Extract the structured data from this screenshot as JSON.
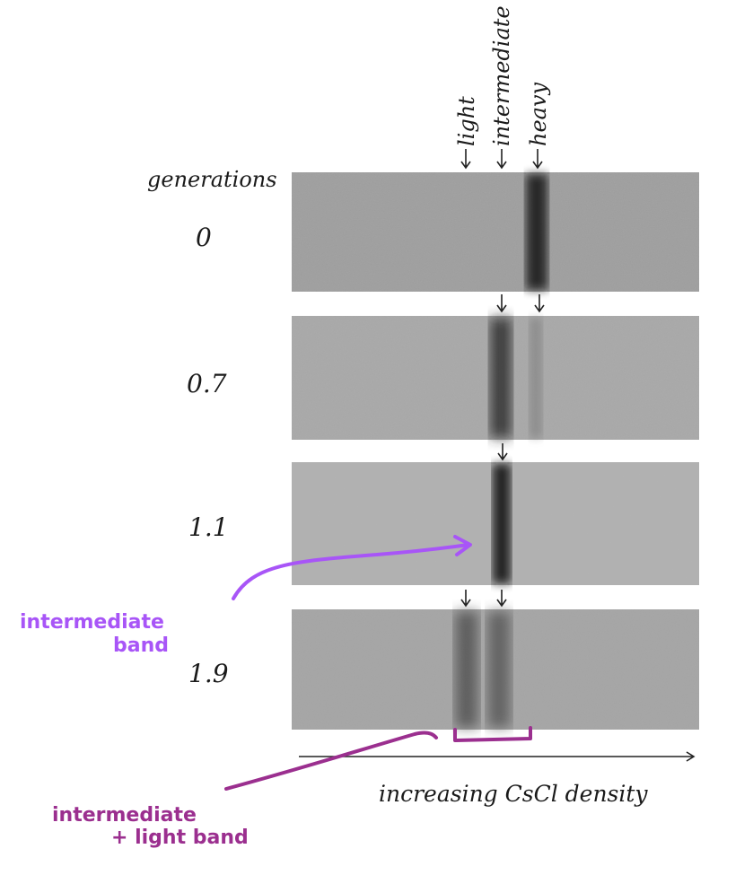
{
  "header": {
    "col_label": "generations",
    "bands": [
      "light",
      "intermediate",
      "heavy"
    ]
  },
  "panels": [
    {
      "generation": "0",
      "bands": [
        "heavy"
      ]
    },
    {
      "generation": "0.7",
      "bands": [
        "intermediate",
        "heavy"
      ]
    },
    {
      "generation": "1.1",
      "bands": [
        "intermediate"
      ]
    },
    {
      "generation": "1.9",
      "bands": [
        "light",
        "intermediate"
      ]
    }
  ],
  "axis": {
    "label": "increasing CsCl density"
  },
  "annotations": {
    "intermediate": [
      "intermediate",
      "band"
    ],
    "intermediate_light": [
      "intermediate",
      "+ light band"
    ]
  },
  "colors": {
    "annotation_purple": "#a855f7",
    "annotation_magenta": "#9b2f8f",
    "panel_gray": "#a9a9a9",
    "band_dark": "#2b2b2b"
  }
}
